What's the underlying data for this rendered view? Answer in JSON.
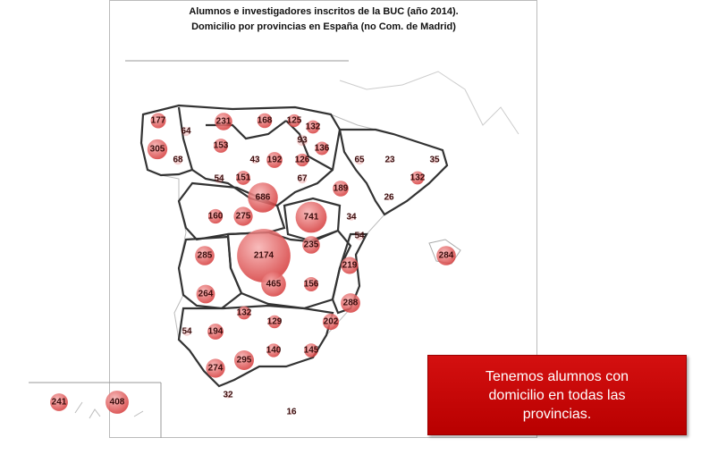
{
  "title": [
    "Alumnos e investigadores inscritos de la BUC (año 2014).",
    "Domicilio por provincias en España (no Com. de Madrid)"
  ],
  "bubbles": [
    177,
    64,
    305,
    68,
    231,
    153,
    168,
    125,
    132,
    93,
    136,
    43,
    192,
    126,
    54,
    151,
    67,
    65,
    23,
    35,
    189,
    132,
    26,
    686,
    741,
    160,
    275,
    34,
    54,
    235,
    285,
    2174,
    284,
    219,
    264,
    465,
    156,
    288,
    132,
    129,
    202,
    54,
    194,
    140,
    145,
    295,
    274,
    32,
    16,
    241,
    408
  ],
  "callout": "Tenemos alumnos con domicilio en todas las provincias."
}
